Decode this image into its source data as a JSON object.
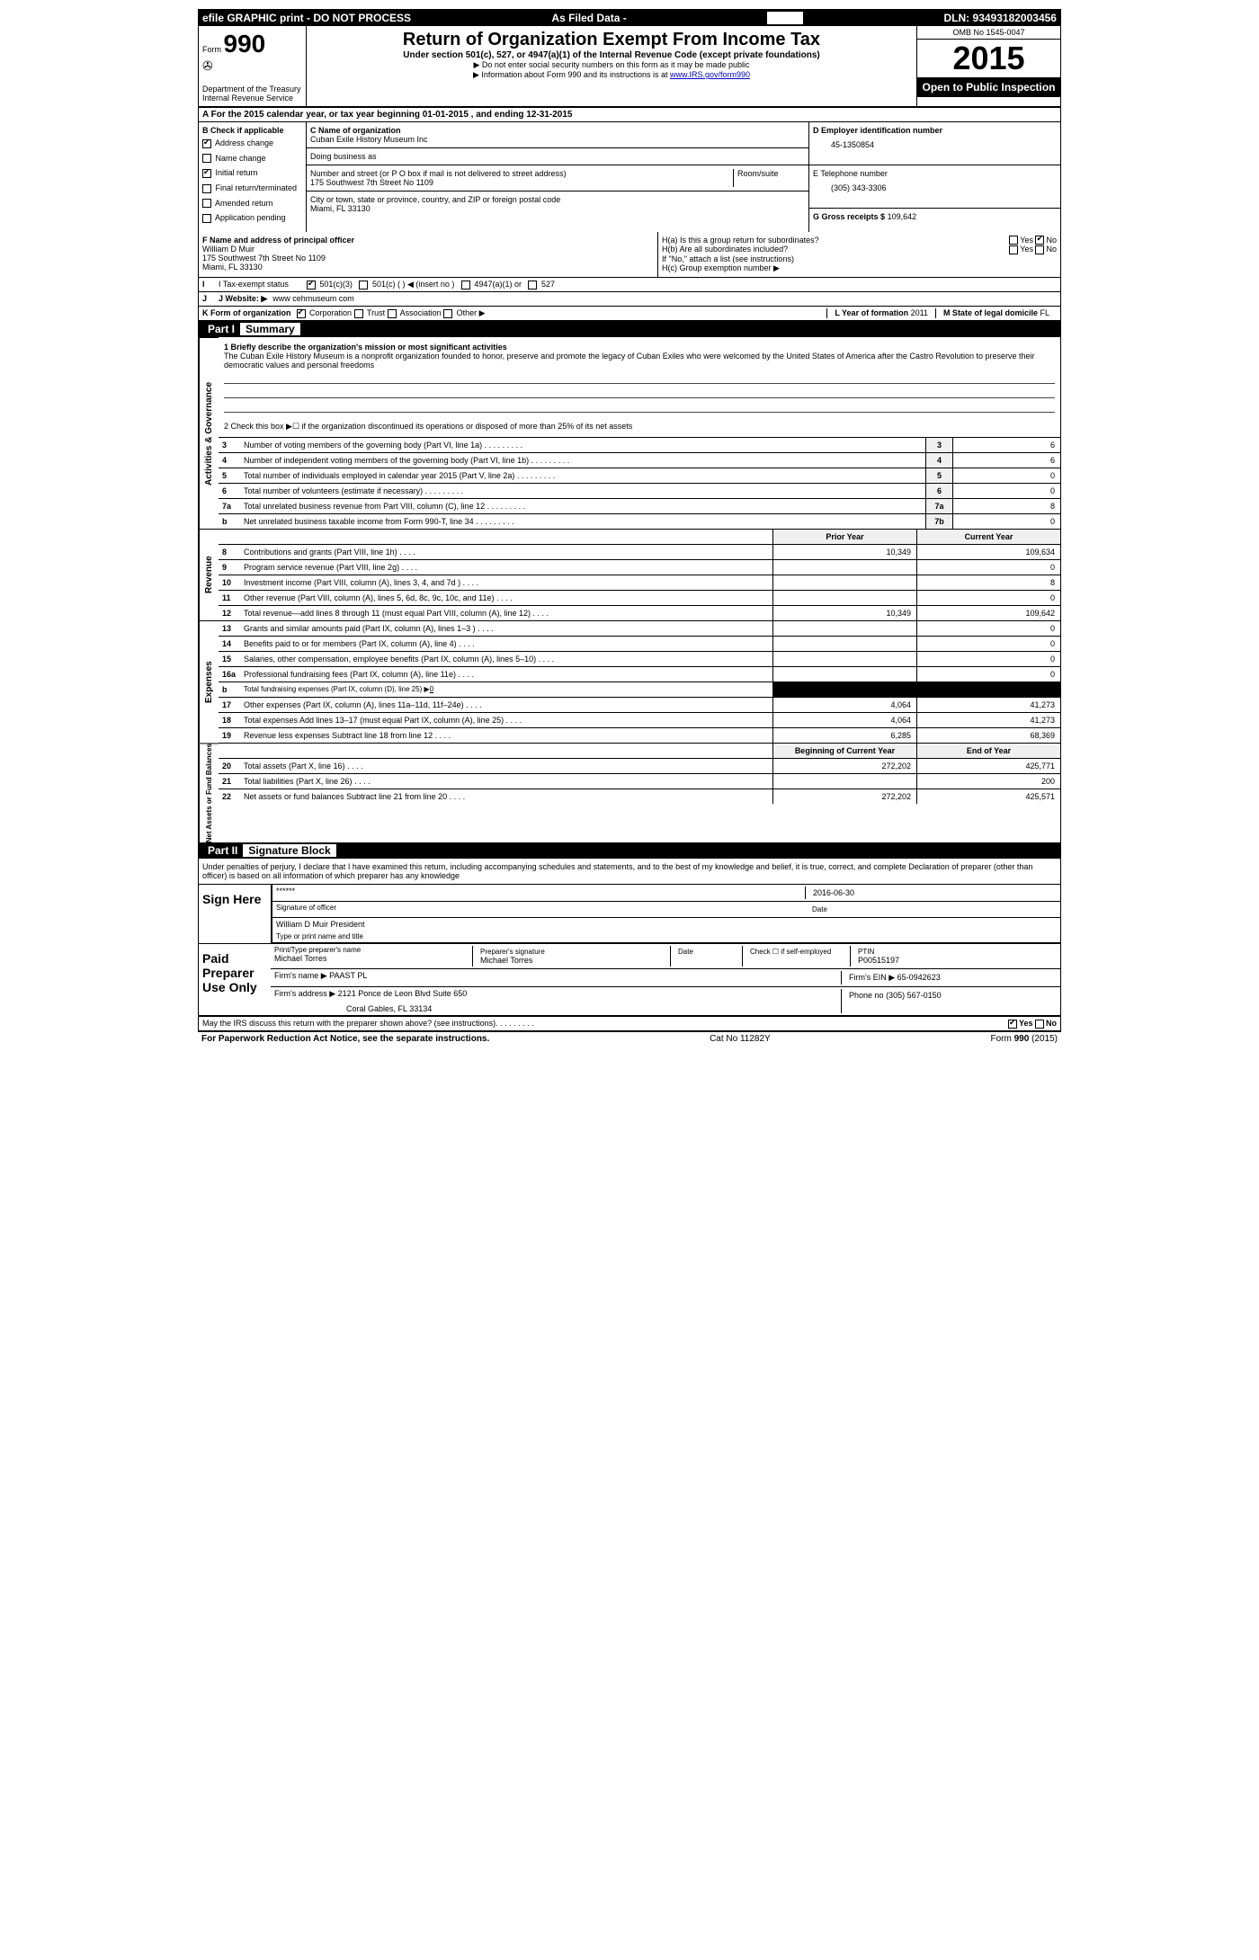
{
  "topbar": {
    "left": "efile GRAPHIC print - DO NOT PROCESS",
    "mid": "As Filed Data -",
    "dln_label": "DLN:",
    "dln": "93493182003456"
  },
  "header": {
    "form_label": "Form",
    "form_num": "990",
    "dept": "Department of the Treasury",
    "irs": "Internal Revenue Service",
    "title": "Return of Organization Exempt From Income Tax",
    "subtitle": "Under section 501(c), 527, or 4947(a)(1) of the Internal Revenue Code (except private foundations)",
    "note1": "▶ Do not enter social security numbers on this form as it may be made public",
    "note2_pre": "▶ Information about Form 990 and its instructions is at ",
    "note2_link": "www.IRS.gov/form990",
    "omb": "OMB No 1545-0047",
    "year": "2015",
    "open": "Open to Public Inspection"
  },
  "rowA": {
    "label": "A  For the 2015 calendar year, or tax year beginning 01-01-2015     , and ending 12-31-2015"
  },
  "checkboxB": {
    "label": "B  Check if applicable",
    "items": [
      "Address change",
      "Name change",
      "Initial return",
      "Final return/terminated",
      "Amended return",
      "Application pending"
    ],
    "checked": [
      true,
      false,
      true,
      false,
      false,
      false
    ]
  },
  "orgC": {
    "label_name": "C Name of organization",
    "name": "Cuban Exile History Museum Inc",
    "dba_label": "Doing business as",
    "dba": "",
    "addr_label": "Number and street (or P O  box if mail is not delivered to street address)",
    "room_label": "Room/suite",
    "addr": "175 Southwest 7th Street No 1109",
    "city_label": "City or town, state or province, country, and ZIP or foreign postal code",
    "city": "Miami, FL  33130"
  },
  "rightD": {
    "ein_label": "D Employer identification number",
    "ein": "45-1350854",
    "phone_label": "E Telephone number",
    "phone": "(305) 343-3306",
    "gross_label": "G Gross receipts $",
    "gross": "109,642"
  },
  "officerF": {
    "label": "F   Name and address of principal officer",
    "name": "William D Muir",
    "addr1": "175 Southwest 7th Street No 1109",
    "addr2": "Miami, FL  33130"
  },
  "groupH": {
    "ha": "H(a)  Is this a group return for subordinates?",
    "hb": "H(b)  Are all subordinates included?",
    "hb_note": "If \"No,\" attach a list  (see instructions)",
    "hc": "H(c)   Group exemption number ▶",
    "yes": "Yes",
    "no": "No"
  },
  "lineI": {
    "label": "I   Tax-exempt status",
    "opts": [
      "501(c)(3)",
      "501(c) (  ) ◀ (insert no )",
      "4947(a)(1) or",
      "527"
    ]
  },
  "lineJ": {
    "label": "J   Website: ▶",
    "val": "www cehmuseum com"
  },
  "lineK": {
    "label": "K Form of organization",
    "opts": [
      "Corporation",
      "Trust",
      "Association",
      "Other ▶"
    ],
    "L_label": "L Year of formation",
    "L_val": "2011",
    "M_label": "M State of legal domicile",
    "M_val": "FL"
  },
  "part1": {
    "title": "Part I",
    "name": "Summary",
    "vert1": "Activities & Governance",
    "vert2": "Revenue",
    "vert3": "Expenses",
    "vert4": "Net Assets or Fund Balances",
    "line1_label": "1 Briefly describe the organization's mission or most significant activities",
    "line1_text": "The Cuban Exile History Museum is a nonprofit organization founded to honor, preserve and promote the legacy of Cuban Exiles who were welcomed by the United States of America after the Castro Revolution to preserve their democratic values and personal freedoms",
    "line2": "2  Check this box ▶☐  if the organization discontinued its operations or disposed of more than 25% of its net assets",
    "rows_gov": [
      {
        "n": "3",
        "d": "Number of voting members of the governing body (Part VI, line 1a)",
        "box": "3",
        "v": "6"
      },
      {
        "n": "4",
        "d": "Number of independent voting members of the governing body (Part VI, line 1b)",
        "box": "4",
        "v": "6"
      },
      {
        "n": "5",
        "d": "Total number of individuals employed in calendar year 2015 (Part V, line 2a)",
        "box": "5",
        "v": "0"
      },
      {
        "n": "6",
        "d": "Total number of volunteers (estimate if necessary)",
        "box": "6",
        "v": "0"
      },
      {
        "n": "7a",
        "d": "Total unrelated business revenue from Part VIII, column (C), line 12",
        "box": "7a",
        "v": "8"
      },
      {
        "n": "b",
        "d": "Net unrelated business taxable income from Form 990-T, line 34",
        "box": "7b",
        "v": "0"
      }
    ],
    "prior_label": "Prior Year",
    "current_label": "Current Year",
    "rows_rev": [
      {
        "n": "8",
        "d": "Contributions and grants (Part VIII, line 1h)",
        "p": "10,349",
        "c": "109,634"
      },
      {
        "n": "9",
        "d": "Program service revenue (Part VIII, line 2g)",
        "p": "",
        "c": "0"
      },
      {
        "n": "10",
        "d": "Investment income (Part VIII, column (A), lines 3, 4, and 7d )",
        "p": "",
        "c": "8"
      },
      {
        "n": "11",
        "d": "Other revenue (Part VIII, column (A), lines 5, 6d, 8c, 9c, 10c, and 11e)",
        "p": "",
        "c": "0"
      },
      {
        "n": "12",
        "d": "Total revenue—add lines 8 through 11 (must equal Part VIII, column (A), line 12)",
        "p": "10,349",
        "c": "109,642"
      }
    ],
    "rows_exp": [
      {
        "n": "13",
        "d": "Grants and similar amounts paid (Part IX, column (A), lines 1–3 )",
        "p": "",
        "c": "0"
      },
      {
        "n": "14",
        "d": "Benefits paid to or for members (Part IX, column (A), line 4)",
        "p": "",
        "c": "0"
      },
      {
        "n": "15",
        "d": "Salaries, other compensation, employee benefits (Part IX, column (A), lines 5–10)",
        "p": "",
        "c": "0"
      },
      {
        "n": "16a",
        "d": "Professional fundraising fees (Part IX, column (A), line 11e)",
        "p": "",
        "c": "0"
      },
      {
        "n": "b",
        "d": "Total fundraising expenses (Part IX, column (D), line 25) ▶",
        "p": "BLACK",
        "c": "BLACK",
        "sub": "0"
      },
      {
        "n": "17",
        "d": "Other expenses (Part IX, column (A), lines 11a–11d, 11f–24e)",
        "p": "4,064",
        "c": "41,273"
      },
      {
        "n": "18",
        "d": "Total expenses  Add lines 13–17 (must equal Part IX, column (A), line 25)",
        "p": "4,064",
        "c": "41,273"
      },
      {
        "n": "19",
        "d": "Revenue less expenses  Subtract line 18 from line 12",
        "p": "6,285",
        "c": "68,369"
      }
    ],
    "begin_label": "Beginning of Current Year",
    "end_label": "End of Year",
    "rows_net": [
      {
        "n": "20",
        "d": "Total assets (Part X, line 16)",
        "p": "272,202",
        "c": "425,771"
      },
      {
        "n": "21",
        "d": "Total liabilities (Part X, line 26)",
        "p": "",
        "c": "200"
      },
      {
        "n": "22",
        "d": "Net assets or fund balances  Subtract line 21 from line 20",
        "p": "272,202",
        "c": "425,571"
      }
    ]
  },
  "part2": {
    "title": "Part II",
    "name": "Signature Block",
    "declaration": "Under penalties of perjury, I declare that I have examined this return, including accompanying schedules and statements, and to the best of my knowledge and belief, it is true, correct, and complete  Declaration of preparer (other than officer) is based on all information of which preparer has any knowledge",
    "sign_here": "Sign Here",
    "sig_stars": "******",
    "sig_of_officer": "Signature of officer",
    "sig_date": "2016-06-30",
    "date_label": "Date",
    "officer_name": "William D Muir President",
    "type_print": "Type or print name and title",
    "paid_prep": "Paid Preparer Use Only",
    "prep_name_label": "Print/Type preparer's name",
    "prep_name": "Michael Torres",
    "prep_sig_label": "Preparer's signature",
    "prep_sig": "Michael Torres",
    "prep_date_label": "Date",
    "check_self": "Check ☐ if self-employed",
    "ptin_label": "PTIN",
    "ptin": "P00515197",
    "firm_name_label": "Firm's name     ▶",
    "firm_name": "PAAST PL",
    "firm_ein_label": "Firm's EIN ▶",
    "firm_ein": "65-0942623",
    "firm_addr_label": "Firm's address ▶",
    "firm_addr1": "2121 Ponce de Leon Blvd Suite 650",
    "firm_addr2": "Coral Gables, FL  33134",
    "firm_phone_label": "Phone no",
    "firm_phone": "(305) 567-0150",
    "discuss": "May the IRS discuss this return with the preparer shown above? (see instructions)"
  },
  "footer": {
    "left": "For Paperwork Reduction Act Notice, see the separate instructions.",
    "mid": "Cat No 11282Y",
    "right": "Form 990 (2015)"
  }
}
